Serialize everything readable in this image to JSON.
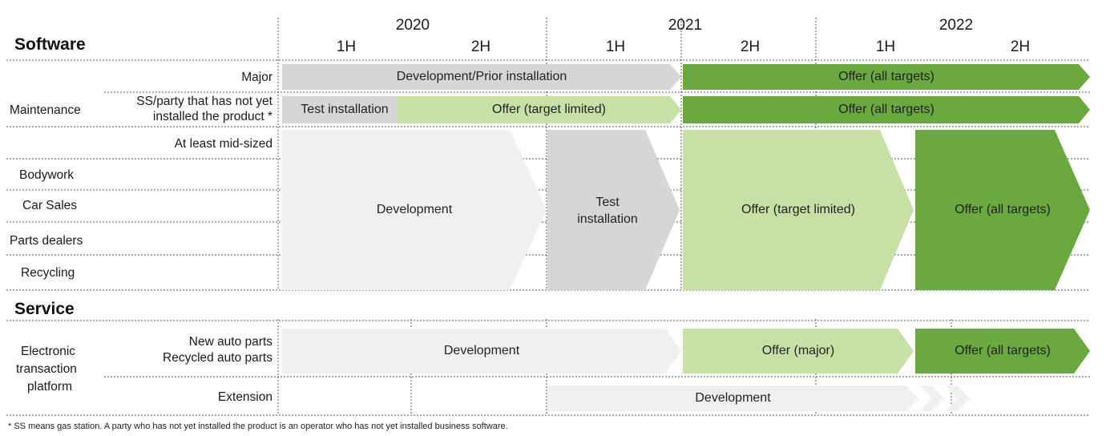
{
  "header": {
    "section_software": "Software",
    "years": [
      "2020",
      "2021",
      "2022"
    ],
    "halves": [
      "1H",
      "2H",
      "1H",
      "2H",
      "1H",
      "2H"
    ]
  },
  "software": {
    "maintenance_label": "Maintenance",
    "rows": {
      "major": "Major",
      "ss_line1": "SS/party that has not yet",
      "ss_line2": "installed the product *",
      "mid_sized": "At least mid-sized",
      "bodywork": "Bodywork",
      "car_sales": "Car Sales",
      "parts_dealers": "Parts dealers",
      "recycling": "Recycling"
    }
  },
  "service": {
    "section_service": "Service",
    "platform_line1": "Electronic",
    "platform_line2": "transaction",
    "platform_line3": "platform",
    "new_parts": "New auto parts",
    "recycled_parts": "Recycled auto parts",
    "extension": "Extension"
  },
  "bars": {
    "major_dev": "Development/Prior installation",
    "major_offer": "Offer (all targets)",
    "ss_test": "Test installation",
    "ss_offer_limited": "Offer (target limited)",
    "ss_offer_all": "Offer (all targets)",
    "block_dev": "Development",
    "block_test_line1": "Test",
    "block_test_line2": "installation",
    "block_offer_limited": "Offer (target limited)",
    "block_offer_all": "Offer (all targets)",
    "eparts_dev": "Development",
    "eparts_offer_major": "Offer (major)",
    "eparts_offer_all": "Offer (all targets)",
    "ext_dev": "Development"
  },
  "footnote": "* SS means gas station. A party who has not yet installed the product is an operator who has not yet installed business software.",
  "colors": {
    "dev_light": "#f0f0f0",
    "test_gray": "#d6d6d6",
    "offer_limited": "#c6e0a6",
    "offer_all": "#6aa840"
  }
}
